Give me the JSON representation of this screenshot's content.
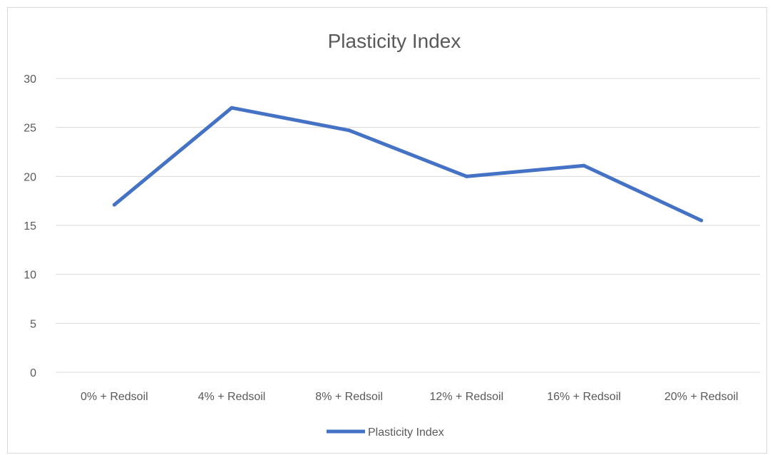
{
  "chart_data": {
    "type": "line",
    "title": "Plasticity Index",
    "xlabel": "",
    "ylabel": "",
    "categories": [
      "0% + Redsoil",
      "4% + Redsoil",
      "8% + Redsoil",
      "12% + Redsoil",
      "16% + Redsoil",
      "20% + Redsoil"
    ],
    "series": [
      {
        "name": "Plasticity Index",
        "values": [
          17.1,
          27.0,
          24.7,
          20.0,
          21.1,
          15.5
        ]
      }
    ],
    "yticks": [
      "0",
      "5",
      "10",
      "15",
      "20",
      "25",
      "30"
    ],
    "ylim": [
      0,
      30
    ],
    "grid": true,
    "legend": "bottom",
    "colors": {
      "series": "#4472c4",
      "grid": "#d9d9d9",
      "text": "#595959"
    }
  }
}
